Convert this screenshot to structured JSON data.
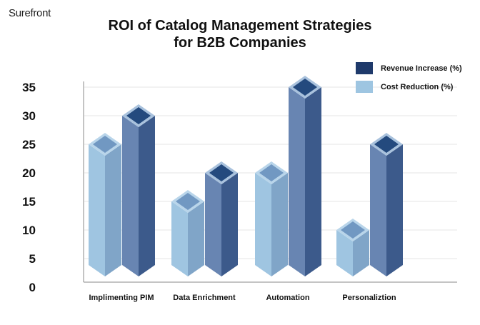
{
  "brand": "Surefront",
  "chart_data": {
    "type": "bar",
    "title_line1": "ROI of Catalog Management Strategies",
    "title_line2": "for B2B Companies",
    "categories": [
      "Implimenting PIM",
      "Data Enrichment",
      "Automation",
      "Personaliztion"
    ],
    "series": [
      {
        "name": "Cost Reduction (%)",
        "values": [
          25,
          15,
          20,
          10
        ],
        "color": "#9ec5e1"
      },
      {
        "name": "Revenue Increase (%)",
        "values": [
          30,
          20,
          35,
          25
        ],
        "color": "#1f3a6b"
      }
    ],
    "yticks": [
      0,
      5,
      10,
      15,
      20,
      25,
      30,
      35
    ],
    "ylim": [
      0,
      35
    ],
    "grid": true,
    "legend": "top-right",
    "legend_order": [
      "Revenue Increase (%)",
      "Cost Reduction (%)"
    ]
  }
}
